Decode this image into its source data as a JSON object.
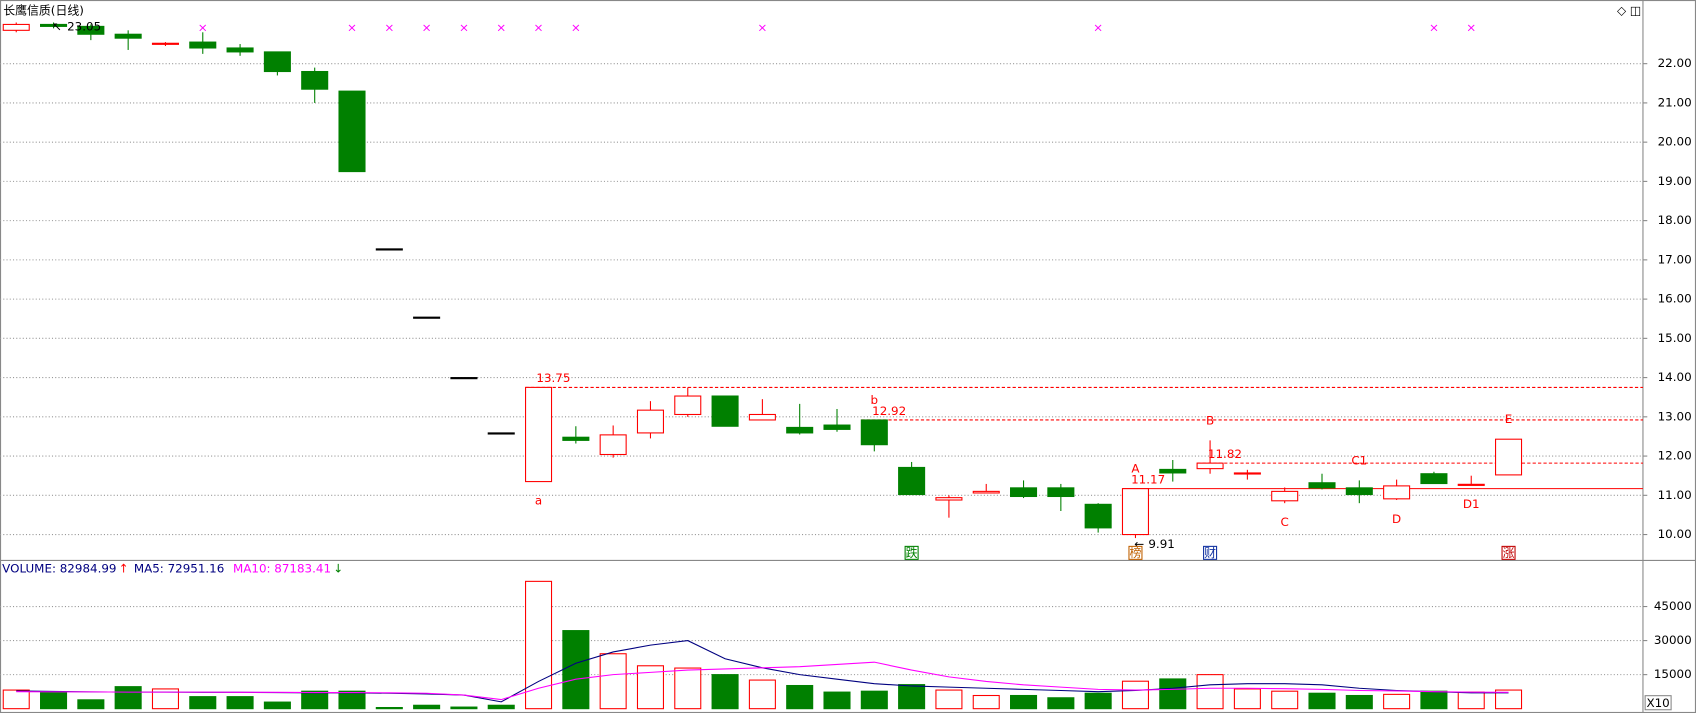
{
  "title": "长鹰信质(日线)",
  "chart_data": [
    {
      "type": "candlestick",
      "ylim": [
        9.34,
        23.54
      ],
      "yticks": [
        {
          "value": 10,
          "label": "10.00"
        },
        {
          "value": 11,
          "label": "11.00"
        },
        {
          "value": 12,
          "label": "12.00"
        },
        {
          "value": 13,
          "label": "13.00"
        },
        {
          "value": 14,
          "label": "14.00"
        },
        {
          "value": 15,
          "label": "15.00"
        },
        {
          "value": 16,
          "label": "16.00"
        },
        {
          "value": 17,
          "label": "17.00"
        },
        {
          "value": 18,
          "label": "18.00"
        },
        {
          "value": 19,
          "label": "19.00"
        },
        {
          "value": 20,
          "label": "20.00"
        },
        {
          "value": 21,
          "label": "21.00"
        },
        {
          "value": 22,
          "label": "22.00"
        }
      ],
      "up_color": "#ff0000",
      "down_color": "#008000",
      "flat_color": "#000000",
      "grid": true,
      "candles": [
        {
          "open": 22.85,
          "high": 23.05,
          "low": 22.8,
          "close": 23.0
        },
        {
          "open": 23.0,
          "high": 23.05,
          "low": 22.9,
          "close": 22.95
        },
        {
          "open": 22.95,
          "high": 23.0,
          "low": 22.6,
          "close": 22.75
        },
        {
          "open": 22.75,
          "high": 22.85,
          "low": 22.35,
          "close": 22.65
        },
        {
          "open": 22.5,
          "high": 22.55,
          "low": 22.45,
          "close": 22.52
        },
        {
          "open": 22.55,
          "high": 22.8,
          "low": 22.25,
          "close": 22.4
        },
        {
          "open": 22.4,
          "high": 22.5,
          "low": 22.2,
          "close": 22.3
        },
        {
          "open": 22.3,
          "high": 22.3,
          "low": 21.7,
          "close": 21.8
        },
        {
          "open": 21.8,
          "high": 21.9,
          "low": 21.0,
          "close": 21.35
        },
        {
          "open": 21.3,
          "high": 21.3,
          "low": 19.25,
          "close": 19.25
        },
        {
          "open": 17.28,
          "high": 17.28,
          "low": 17.28,
          "close": 17.28
        },
        {
          "open": 15.54,
          "high": 15.54,
          "low": 15.54,
          "close": 15.54
        },
        {
          "open": 14.0,
          "high": 14.0,
          "low": 14.0,
          "close": 14.0
        },
        {
          "open": 12.59,
          "high": 12.59,
          "low": 12.59,
          "close": 12.59
        },
        {
          "open": 11.35,
          "high": 13.75,
          "low": 11.35,
          "close": 13.75,
          "note": "a"
        },
        {
          "open": 12.48,
          "high": 12.76,
          "low": 12.32,
          "close": 12.4
        },
        {
          "open": 12.04,
          "high": 12.78,
          "low": 11.96,
          "close": 12.54
        },
        {
          "open": 12.59,
          "high": 13.4,
          "low": 12.45,
          "close": 13.17
        },
        {
          "open": 13.06,
          "high": 13.75,
          "low": 13.0,
          "close": 13.53
        },
        {
          "open": 13.53,
          "high": 13.53,
          "low": 12.76,
          "close": 12.76
        },
        {
          "open": 12.92,
          "high": 13.45,
          "low": 12.92,
          "close": 13.06
        },
        {
          "open": 12.73,
          "high": 13.33,
          "low": 12.55,
          "close": 12.59
        },
        {
          "open": 12.79,
          "high": 13.2,
          "low": 12.62,
          "close": 12.68
        },
        {
          "open": 12.92,
          "high": 12.92,
          "low": 12.12,
          "close": 12.29,
          "note": "b"
        },
        {
          "open": 11.71,
          "high": 11.85,
          "low": 11.02,
          "close": 11.02
        },
        {
          "open": 10.88,
          "high": 11.0,
          "low": 10.43,
          "close": 10.94
        },
        {
          "open": 11.06,
          "high": 11.29,
          "low": 11.06,
          "close": 11.1
        },
        {
          "open": 11.19,
          "high": 11.38,
          "low": 10.93,
          "close": 10.97
        },
        {
          "open": 11.19,
          "high": 11.29,
          "low": 10.6,
          "close": 10.97
        },
        {
          "open": 10.77,
          "high": 10.8,
          "low": 10.05,
          "close": 10.17
        },
        {
          "open": 10.0,
          "high": 11.17,
          "low": 9.91,
          "close": 11.17,
          "note": "A"
        },
        {
          "open": 11.66,
          "high": 11.9,
          "low": 11.35,
          "close": 11.57
        },
        {
          "open": 11.68,
          "high": 12.4,
          "low": 11.55,
          "close": 11.82,
          "note": "B"
        },
        {
          "open": 11.55,
          "high": 11.65,
          "low": 11.4,
          "close": 11.57
        },
        {
          "open": 10.86,
          "high": 11.2,
          "low": 10.8,
          "close": 11.1,
          "note": "C"
        },
        {
          "open": 11.32,
          "high": 11.55,
          "low": 11.15,
          "close": 11.19
        },
        {
          "open": 11.19,
          "high": 11.38,
          "low": 10.8,
          "close": 11.02,
          "note": "C1"
        },
        {
          "open": 10.91,
          "high": 11.4,
          "low": 10.88,
          "close": 11.24,
          "note": "D"
        },
        {
          "open": 11.55,
          "high": 11.6,
          "low": 11.3,
          "close": 11.3
        },
        {
          "open": 11.26,
          "high": 11.5,
          "low": 11.26,
          "close": 11.28,
          "note": "D1"
        },
        {
          "open": 11.52,
          "high": 12.43,
          "low": 11.52,
          "close": 12.43,
          "note": "E"
        }
      ],
      "levels": [
        {
          "value": 13.75,
          "style": "dashed"
        },
        {
          "value": 12.92,
          "style": "dashed"
        },
        {
          "value": 11.82,
          "style": "dashed"
        },
        {
          "value": 11.17,
          "style": "solid"
        }
      ],
      "extremes": {
        "high": 23.05,
        "low": 9.91
      },
      "events": [
        {
          "label": "跌",
          "color": "#008000"
        },
        {
          "label": "榜",
          "color": "#c06000"
        },
        {
          "label": "财",
          "color": "#1030a0"
        },
        {
          "label": "涨",
          "color": "#c00000"
        }
      ]
    },
    {
      "type": "volume",
      "ylim": [
        0,
        64360
      ],
      "yticks": [
        15000,
        30000,
        45000
      ],
      "scale_label": "X10",
      "header": [
        {
          "text": "VOLUME: 82984.99",
          "color": "#000080"
        },
        {
          "text": "MA5: 72951.16",
          "color": "#000080"
        },
        {
          "text": "MA10: 87183.41",
          "color": "#ff00ff"
        }
      ],
      "values": [
        8200,
        7300,
        3900,
        9700,
        8700,
        5300,
        5300,
        2900,
        7700,
        7700,
        500,
        1500,
        700,
        1500,
        56100,
        34400,
        24200,
        18900,
        17900,
        15000,
        12600,
        10200,
        7300,
        7700,
        10600,
        8200,
        5800,
        5800,
        4800,
        6800,
        12100,
        13100,
        15000,
        8700,
        7700,
        6800,
        5800,
        6300,
        7700,
        7300,
        8200
      ],
      "series": [
        {
          "name": "MA5",
          "color": "#000080",
          "values": [
            7800,
            7600,
            7400,
            7300,
            7300,
            7200,
            7200,
            7100,
            7000,
            7000,
            6800,
            6500,
            6000,
            3000,
            12000,
            20000,
            25000,
            28000,
            30000,
            22000,
            18000,
            15000,
            13000,
            11000,
            10000,
            9500,
            9000,
            8500,
            8000,
            7500,
            8000,
            9000,
            10500,
            11000,
            11000,
            10500,
            9000,
            8000,
            7500,
            7000,
            7000
          ]
        },
        {
          "name": "MA10",
          "color": "#ff00ff",
          "values": [
            7500,
            7400,
            7400,
            7300,
            7300,
            7300,
            7200,
            7200,
            7100,
            7100,
            7000,
            6800,
            6000,
            4000,
            9000,
            13000,
            15000,
            16000,
            17000,
            17500,
            18000,
            18500,
            19500,
            20500,
            17000,
            14000,
            12000,
            10500,
            9500,
            8500,
            8200,
            8500,
            9000,
            9000,
            8800,
            8500,
            8000,
            7800,
            7500,
            7300,
            7200
          ]
        }
      ]
    }
  ]
}
